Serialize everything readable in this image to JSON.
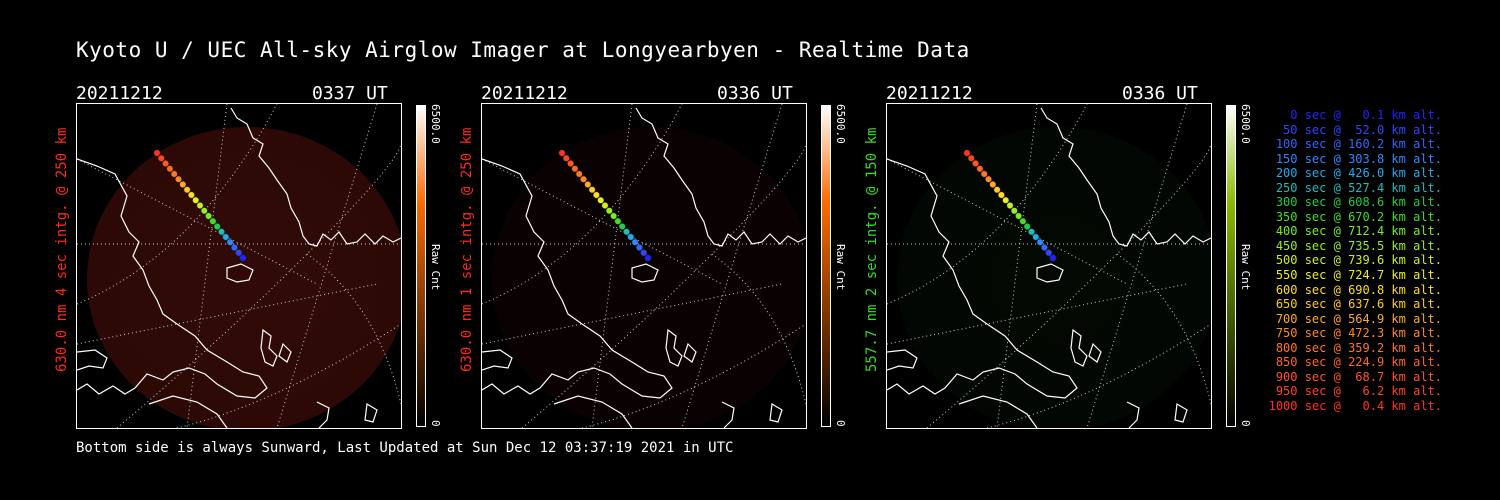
{
  "title": "Kyoto U / UEC All-sky Airglow Imager at Longyearbyen - Realtime Data",
  "footer": "Bottom side is always Sunward, Last Updated at Sun Dec 12 03:37:19 2021 in UTC",
  "panels": [
    {
      "date": "20211212",
      "time": "0337 UT",
      "label": "630.0 nm 4 sec intg. @ 250 km",
      "label_color": "#ff2a1a",
      "colorbar": {
        "max": "6500.0",
        "unit": "Raw Cnt",
        "min": "0",
        "top_color": "#ffffff",
        "mid_color": "#ff6a00",
        "bottom_color": "#000000"
      },
      "image_tint": "#3a0c08",
      "image_intensity": 0.85
    },
    {
      "date": "20211212",
      "time": "0336 UT",
      "label": "630.0 nm 1 sec intg. @ 250 km",
      "label_color": "#ff2a1a",
      "colorbar": {
        "max": "6500.0",
        "unit": "Raw Cnt",
        "min": "0",
        "top_color": "#ffffff",
        "mid_color": "#ff6a00",
        "bottom_color": "#000000"
      },
      "image_tint": "#1e0706",
      "image_intensity": 0.35
    },
    {
      "date": "20211212",
      "time": "0336 UT",
      "label": "557.7 nm 2 sec intg. @ 150 km",
      "label_color": "#33dd22",
      "colorbar": {
        "max": "6500.0",
        "unit": "Raw Cnt",
        "min": "0",
        "top_color": "#ffffff",
        "mid_color": "#88bb00",
        "bottom_color": "#000000"
      },
      "image_tint": "#0b1a0b",
      "image_intensity": 0.3
    }
  ],
  "trajectory": {
    "color_scale": [
      "#2222ff",
      "#3344ff",
      "#3366ff",
      "#3388ff",
      "#22aaee",
      "#22bbbb",
      "#22cc44",
      "#44dd22",
      "#77ee22",
      "#99ee22",
      "#ccee22",
      "#eeee22",
      "#ffdd22",
      "#ffcc22",
      "#ffaa22",
      "#ff8822",
      "#ff7722",
      "#ff6622",
      "#ff5522",
      "#ff4422",
      "#ff3322"
    ],
    "entries": [
      {
        "t": "0 sec",
        "alt": "0.1 km alt."
      },
      {
        "t": "50 sec",
        "alt": "52.0 km alt."
      },
      {
        "t": "100 sec",
        "alt": "160.2 km alt."
      },
      {
        "t": "150 sec",
        "alt": "303.8 km alt."
      },
      {
        "t": "200 sec",
        "alt": "426.0 km alt."
      },
      {
        "t": "250 sec",
        "alt": "527.4 km alt."
      },
      {
        "t": "300 sec",
        "alt": "608.6 km alt."
      },
      {
        "t": "350 sec",
        "alt": "670.2 km alt."
      },
      {
        "t": "400 sec",
        "alt": "712.4 km alt."
      },
      {
        "t": "450 sec",
        "alt": "735.5 km alt."
      },
      {
        "t": "500 sec",
        "alt": "739.6 km alt."
      },
      {
        "t": "550 sec",
        "alt": "724.7 km alt."
      },
      {
        "t": "600 sec",
        "alt": "690.8 km alt."
      },
      {
        "t": "650 sec",
        "alt": "637.6 km alt."
      },
      {
        "t": "700 sec",
        "alt": "564.9 km alt."
      },
      {
        "t": "750 sec",
        "alt": "472.3 km alt."
      },
      {
        "t": "800 sec",
        "alt": "359.2 km alt."
      },
      {
        "t": "850 sec",
        "alt": "224.9 km alt."
      },
      {
        "t": "900 sec",
        "alt": "68.7 km alt."
      },
      {
        "t": "950 sec",
        "alt": "6.2 km alt."
      },
      {
        "t": "1000 sec",
        "alt": "0.4 km alt."
      }
    ]
  }
}
